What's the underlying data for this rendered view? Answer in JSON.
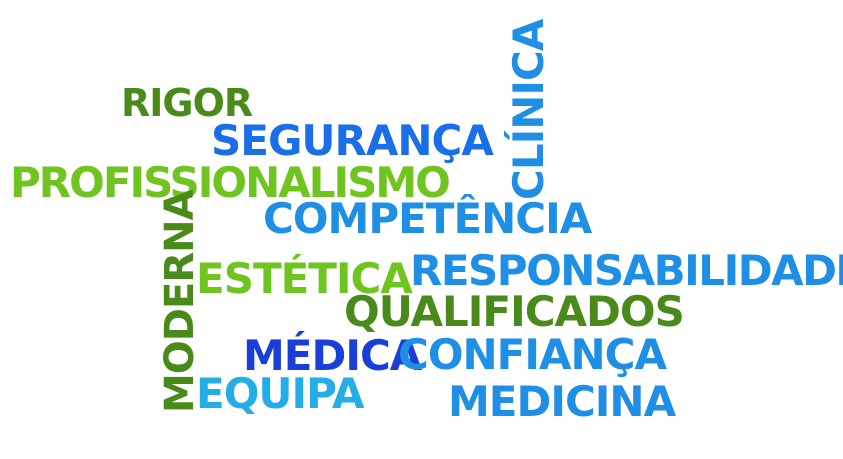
{
  "word_cloud": {
    "words": {
      "rigor": "RIGOR",
      "seguranca": "SEGURANÇA",
      "profissionalismo": "PROFISSIONALISMO",
      "clinica": "CLÍNICA",
      "competencia": "COMPETÊNCIA",
      "moderna": "MODERNA",
      "estetica": "ESTÉTICA",
      "responsabilidade": "RESPONSABILIDADE",
      "qualificados": "QUALIFICADOS",
      "medica": "MÉDICA",
      "confianca": "CONFIANÇA",
      "equipa": "EQUIPA",
      "medicina": "MEDICINA"
    },
    "colors": {
      "dark_green": "#4a8a1a",
      "light_green": "#6fc41f",
      "blue": "#1e8fe4",
      "royal_blue": "#1a6ee8",
      "deep_blue": "#1a3fd8",
      "cyan": "#24aee8"
    }
  }
}
